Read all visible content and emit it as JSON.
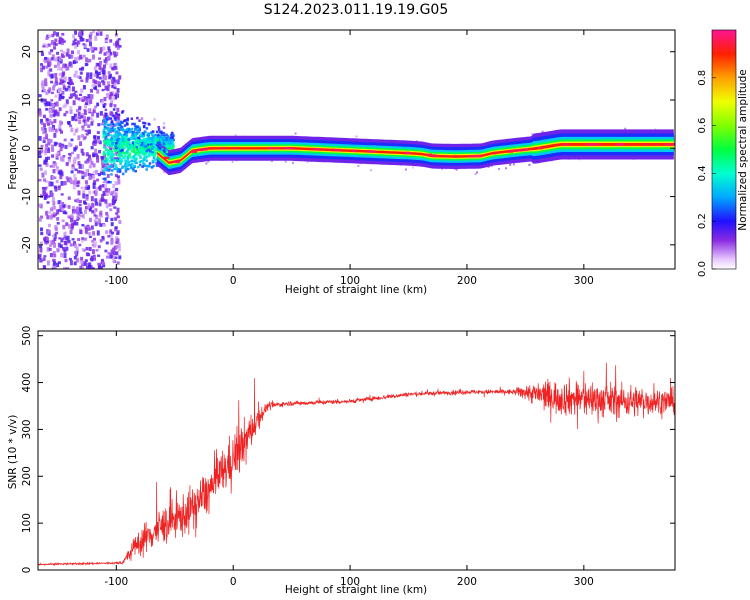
{
  "figure": {
    "title": "S124.2023.011.19.19.G05"
  },
  "chart_data": [
    {
      "type": "heatmap",
      "xlabel": "Height of straight line (km)",
      "ylabel": "Frequency (Hz)",
      "xlim": [
        -167,
        378
      ],
      "ylim": [
        -25,
        24.5
      ],
      "xticks": [
        -100,
        0,
        100,
        200,
        300
      ],
      "yticks": [
        -20,
        -10,
        0,
        10,
        20
      ],
      "colorbar": {
        "label": "Normalized spectral amplitude",
        "range": [
          0,
          1
        ],
        "ticks": [
          0.0,
          0.2,
          0.4,
          0.6,
          0.8
        ]
      },
      "ridge": {
        "x": [
          -65,
          -55,
          -45,
          -35,
          -20,
          -5,
          10,
          50,
          100,
          150,
          162,
          170,
          190,
          212,
          222,
          240,
          260,
          280,
          320,
          378
        ],
        "frequency": [
          -1,
          -3,
          -2.5,
          -0.5,
          0,
          0,
          0,
          0,
          -0.5,
          -1,
          -1.2,
          -1.6,
          -1.7,
          -1.6,
          -1,
          -0.5,
          0,
          0.8,
          0.8,
          0.8
        ]
      },
      "noise_region_x": [
        -167,
        -110
      ],
      "grid": false
    },
    {
      "type": "line",
      "xlabel": "Height of straight line (km)",
      "ylabel": "SNR (10 * v/v)",
      "xlim": [
        -167,
        378
      ],
      "ylim": [
        0,
        510
      ],
      "xticks": [
        -100,
        0,
        100,
        200,
        300
      ],
      "yticks": [
        0,
        100,
        200,
        300,
        400,
        500
      ],
      "series": [
        {
          "color": "#ee2222",
          "envelope": {
            "x": [
              -167,
              -95,
              -80,
              -60,
              -40,
              -20,
              0,
              10,
              20,
              30,
              45,
              100,
              150,
              200,
              240,
              250,
              270,
              300,
              340,
              378
            ],
            "mean": [
              12,
              15,
              60,
              95,
              120,
              170,
              240,
              270,
              320,
              350,
              355,
              360,
              375,
              380,
              380,
              380,
              370,
              365,
              360,
              360
            ],
            "spread": [
              3,
              4,
              55,
              70,
              80,
              80,
              90,
              90,
              50,
              12,
              8,
              8,
              8,
              8,
              10,
              30,
              60,
              70,
              60,
              45
            ]
          }
        }
      ],
      "grid": false
    }
  ]
}
